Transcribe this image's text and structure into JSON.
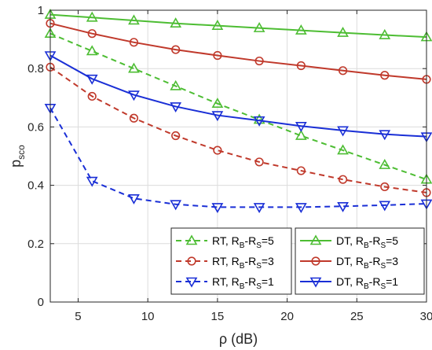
{
  "chart_data": {
    "type": "line",
    "xlabel": "ρ (dB)",
    "ylabel_main": "p",
    "ylabel_sub": "sco",
    "xlim": [
      3,
      30
    ],
    "ylim": [
      0,
      1
    ],
    "x_ticks": [
      5,
      10,
      15,
      20,
      25,
      30
    ],
    "y_ticks": [
      0,
      0.2,
      0.4,
      0.6,
      0.8,
      1
    ],
    "x_tick_labels": [
      "5",
      "10",
      "15",
      "20",
      "25",
      "30"
    ],
    "y_tick_labels": [
      "0",
      "0.2",
      "0.4",
      "0.6",
      "0.8",
      "1"
    ],
    "grid": true,
    "legend_placement": "bottom-right",
    "x": [
      3,
      6,
      9,
      12,
      15,
      18,
      21,
      24,
      27,
      30
    ],
    "series": [
      {
        "name": "RT, R_B-R_S=5",
        "label_parts": [
          "RT, R",
          "B",
          "-R",
          "S",
          "=5"
        ],
        "color": "#4dbd33",
        "dash": "dashed",
        "marker": "triangle-up",
        "values": [
          0.92,
          0.86,
          0.8,
          0.74,
          0.68,
          0.625,
          0.57,
          0.52,
          0.47,
          0.42
        ]
      },
      {
        "name": "RT, R_B-R_S=3",
        "label_parts": [
          "RT, R",
          "B",
          "-R",
          "S",
          "=3"
        ],
        "color": "#c0392b",
        "dash": "dashed",
        "marker": "circle",
        "values": [
          0.805,
          0.705,
          0.63,
          0.57,
          0.52,
          0.48,
          0.45,
          0.42,
          0.395,
          0.375
        ]
      },
      {
        "name": "RT, R_B-R_S=1",
        "label_parts": [
          "RT, R",
          "B",
          "-R",
          "S",
          "=1"
        ],
        "color": "#1a2fd6",
        "dash": "dashed",
        "marker": "triangle-down",
        "values": [
          0.665,
          0.415,
          0.355,
          0.335,
          0.325,
          0.325,
          0.325,
          0.328,
          0.332,
          0.337
        ]
      },
      {
        "name": "DT, R_B-R_S=5",
        "label_parts": [
          "DT, R",
          "B",
          "-R",
          "S",
          "=5"
        ],
        "color": "#4dbd33",
        "dash": "solid",
        "marker": "triangle-up",
        "values": [
          0.985,
          0.975,
          0.965,
          0.955,
          0.947,
          0.939,
          0.931,
          0.923,
          0.915,
          0.908
        ]
      },
      {
        "name": "DT, R_B-R_S=3",
        "label_parts": [
          "DT, R",
          "B",
          "-R",
          "S",
          "=3"
        ],
        "color": "#c0392b",
        "dash": "solid",
        "marker": "circle",
        "values": [
          0.955,
          0.92,
          0.89,
          0.865,
          0.845,
          0.826,
          0.81,
          0.793,
          0.777,
          0.763
        ]
      },
      {
        "name": "DT, R_B-R_S=1",
        "label_parts": [
          "DT, R",
          "B",
          "-R",
          "S",
          "=1"
        ],
        "color": "#1a2fd6",
        "dash": "solid",
        "marker": "triangle-down",
        "values": [
          0.845,
          0.765,
          0.71,
          0.67,
          0.64,
          0.622,
          0.603,
          0.588,
          0.575,
          0.567
        ]
      }
    ],
    "legend_left": [
      0,
      1,
      2
    ],
    "legend_right": [
      3,
      4,
      5
    ]
  }
}
